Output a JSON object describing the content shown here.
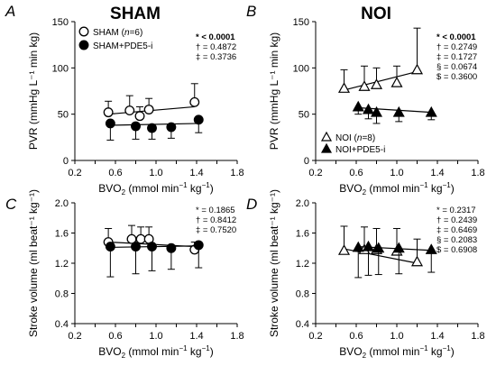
{
  "column_titles": [
    "SHAM",
    "NOI"
  ],
  "chart_data": [
    {
      "panel": "A",
      "type": "scatter",
      "title": "SHAM",
      "xlabel_main": "BVO",
      "xlabel_sub": "2",
      "xlabel_units": " (mmol min",
      "xlabel_sup": "−1",
      "xlabel_units2": " kg",
      "xlabel_sup2": "−1",
      "xlabel_end": ")",
      "ylabel": "PVR (mmHg L⁻¹ min kg)",
      "xlim": [
        0.2,
        1.8
      ],
      "ylim": [
        0,
        150
      ],
      "xticks": [
        0.2,
        0.4,
        0.6,
        0.8,
        1.0,
        1.2,
        1.4,
        1.6,
        1.8
      ],
      "xtick_labels": [
        "0.2",
        "",
        "0.6",
        "",
        "1.0",
        "",
        "1.4",
        "",
        "1.8"
      ],
      "yticks": [
        0,
        50,
        100,
        150
      ],
      "ytick_labels": [
        "0",
        "50",
        "100",
        "150"
      ],
      "legend_placement": "top-left",
      "series": [
        {
          "name": "SHAM (n=6)",
          "name_pre": "SHAM (",
          "name_italic": "n",
          "name_post": "=6)",
          "marker": "circle",
          "filled": false,
          "x": [
            0.53,
            0.74,
            0.84,
            0.93,
            1.38
          ],
          "y": [
            52,
            54,
            48,
            55,
            63
          ],
          "err": [
            12,
            16,
            10,
            12,
            20
          ],
          "fit": [
            [
              0.53,
              50
            ],
            [
              1.38,
              58
            ]
          ]
        },
        {
          "name": "SHAM+PDE5-i",
          "marker": "circle",
          "filled": true,
          "x": [
            0.55,
            0.8,
            0.96,
            1.15,
            1.42
          ],
          "y": [
            40,
            37,
            35,
            36,
            44
          ],
          "err": [
            18,
            14,
            12,
            12,
            14
          ],
          "fit": [
            [
              0.55,
              38
            ],
            [
              1.42,
              40
            ]
          ]
        }
      ],
      "stats": [
        {
          "symbol": "*",
          "text": " < 0.0001",
          "bold": true
        },
        {
          "symbol": "†",
          "text": " = 0.4872",
          "bold": false
        },
        {
          "symbol": "‡",
          "text": " = 0.3736",
          "bold": false
        }
      ]
    },
    {
      "panel": "B",
      "type": "scatter",
      "title": "NOI",
      "xlabel_main": "BVO",
      "xlabel_sub": "2",
      "xlabel_units": " (mmol min",
      "xlabel_sup": "−1",
      "xlabel_units2": " kg",
      "xlabel_sup2": "−1",
      "xlabel_end": ")",
      "ylabel": "PVR (mmHg L⁻¹ min kg)",
      "xlim": [
        0.2,
        1.8
      ],
      "ylim": [
        0,
        150
      ],
      "xticks": [
        0.2,
        0.4,
        0.6,
        0.8,
        1.0,
        1.2,
        1.4,
        1.6,
        1.8
      ],
      "xtick_labels": [
        "0.2",
        "",
        "0.6",
        "",
        "1.0",
        "",
        "1.4",
        "",
        "1.8"
      ],
      "yticks": [
        0,
        50,
        100,
        150
      ],
      "ytick_labels": [
        "0",
        "50",
        "100",
        "150"
      ],
      "legend_placement": "bottom-left",
      "series": [
        {
          "name": "NOI (n=8)",
          "name_pre": "NOI (",
          "name_italic": "n",
          "name_post": "=8)",
          "marker": "triangle",
          "filled": false,
          "x": [
            0.48,
            0.68,
            0.8,
            1.0,
            1.2
          ],
          "y": [
            78,
            80,
            82,
            84,
            98
          ],
          "err": [
            20,
            22,
            18,
            18,
            45
          ],
          "fit": [
            [
              0.48,
              76
            ],
            [
              1.2,
              96
            ]
          ]
        },
        {
          "name": "NOI+PDE5-i",
          "marker": "triangle",
          "filled": true,
          "x": [
            0.62,
            0.72,
            0.8,
            1.02,
            1.34
          ],
          "y": [
            58,
            55,
            52,
            52,
            52
          ],
          "err": [
            8,
            10,
            12,
            10,
            8
          ],
          "fit": [
            [
              0.62,
              57
            ],
            [
              1.34,
              52
            ]
          ]
        }
      ],
      "stats": [
        {
          "symbol": "*",
          "text": " < 0.0001",
          "bold": true
        },
        {
          "symbol": "†",
          "text": " = 0.2749",
          "bold": false
        },
        {
          "symbol": "‡",
          "text": " = 0.1727",
          "bold": false
        },
        {
          "symbol": "§",
          "text": " = 0.0674",
          "bold": false
        },
        {
          "symbol": "$",
          "text": " = 0.3600",
          "bold": false
        }
      ]
    },
    {
      "panel": "C",
      "type": "scatter",
      "title": "",
      "xlabel_main": "BVO",
      "xlabel_sub": "2",
      "xlabel_units": " (mmol min",
      "xlabel_sup": "−1",
      "xlabel_units2": " kg",
      "xlabel_sup2": "−1",
      "xlabel_end": ")",
      "ylabel": "Stroke volume (ml beat⁻¹ kg⁻¹)",
      "xlim": [
        0.2,
        1.8
      ],
      "ylim": [
        0.4,
        2.0
      ],
      "xticks": [
        0.2,
        0.4,
        0.6,
        0.8,
        1.0,
        1.2,
        1.4,
        1.6,
        1.8
      ],
      "xtick_labels": [
        "0.2",
        "",
        "0.6",
        "",
        "1.0",
        "",
        "1.4",
        "",
        "1.8"
      ],
      "yticks": [
        0.4,
        0.8,
        1.2,
        1.6,
        2.0
      ],
      "ytick_labels": [
        "0.4",
        "0.8",
        "1.2",
        "1.6",
        "2.0"
      ],
      "legend_placement": "none",
      "series": [
        {
          "name": "SHAM",
          "marker": "circle",
          "filled": false,
          "x": [
            0.53,
            0.76,
            0.85,
            0.93,
            1.38
          ],
          "y": [
            1.48,
            1.52,
            1.52,
            1.52,
            1.38
          ],
          "err": [
            0.18,
            0.18,
            0.16,
            0.16,
            0.1
          ],
          "fit": [
            [
              0.53,
              1.48
            ],
            [
              1.38,
              1.42
            ]
          ]
        },
        {
          "name": "SHAM+PDE5-i",
          "marker": "circle",
          "filled": true,
          "x": [
            0.55,
            0.8,
            0.96,
            1.15,
            1.42
          ],
          "y": [
            1.42,
            1.42,
            1.42,
            1.4,
            1.44
          ],
          "err": [
            0.4,
            0.36,
            0.32,
            0.28,
            0.3
          ],
          "fit": [
            [
              0.55,
              1.41
            ],
            [
              1.42,
              1.43
            ]
          ]
        }
      ],
      "stats": [
        {
          "symbol": "*",
          "text": " = 0.1865",
          "bold": false
        },
        {
          "symbol": "†",
          "text": " = 0.8412",
          "bold": false
        },
        {
          "symbol": "‡",
          "text": " = 0.7520",
          "bold": false
        }
      ]
    },
    {
      "panel": "D",
      "type": "scatter",
      "title": "",
      "xlabel_main": "BVO",
      "xlabel_sub": "2",
      "xlabel_units": " (mmol min",
      "xlabel_sup": "−1",
      "xlabel_units2": " kg",
      "xlabel_sup2": "−1",
      "xlabel_end": ")",
      "ylabel": "Stroke volume (ml beat⁻¹ kg⁻¹)",
      "xlim": [
        0.2,
        1.8
      ],
      "ylim": [
        0.4,
        2.0
      ],
      "xticks": [
        0.2,
        0.4,
        0.6,
        0.8,
        1.0,
        1.2,
        1.4,
        1.6,
        1.8
      ],
      "xtick_labels": [
        "0.2",
        "",
        "0.6",
        "",
        "1.0",
        "",
        "1.4",
        "",
        "1.8"
      ],
      "yticks": [
        0.4,
        0.8,
        1.2,
        1.6,
        2.0
      ],
      "ytick_labels": [
        "0.4",
        "0.8",
        "1.2",
        "1.6",
        "2.0"
      ],
      "legend_placement": "none",
      "series": [
        {
          "name": "NOI",
          "marker": "triangle",
          "filled": false,
          "x": [
            0.48,
            0.68,
            0.8,
            1.0,
            1.2
          ],
          "y": [
            1.37,
            1.38,
            1.38,
            1.36,
            1.22
          ],
          "err": [
            0.32,
            0.3,
            0.28,
            0.3,
            0.3
          ],
          "fit": [
            [
              0.48,
              1.39
            ],
            [
              1.2,
              1.2
            ]
          ]
        },
        {
          "name": "NOI+PDE5-i",
          "marker": "triangle",
          "filled": true,
          "x": [
            0.62,
            0.72,
            0.82,
            1.02,
            1.34
          ],
          "y": [
            1.41,
            1.42,
            1.4,
            1.4,
            1.38
          ],
          "err": [
            0.4,
            0.38,
            0.35,
            0.34,
            0.3
          ],
          "fit": [
            [
              0.62,
              1.42
            ],
            [
              1.34,
              1.37
            ]
          ]
        }
      ],
      "stats": [
        {
          "symbol": "*",
          "text": " = 0.2317",
          "bold": false
        },
        {
          "symbol": "†",
          "text": " = 0.2439",
          "bold": false
        },
        {
          "symbol": "‡",
          "text": " = 0.6469",
          "bold": false
        },
        {
          "symbol": "§",
          "text": " = 0.2083",
          "bold": false
        },
        {
          "symbol": "$",
          "text": " = 0.6908",
          "bold": false
        }
      ]
    }
  ]
}
